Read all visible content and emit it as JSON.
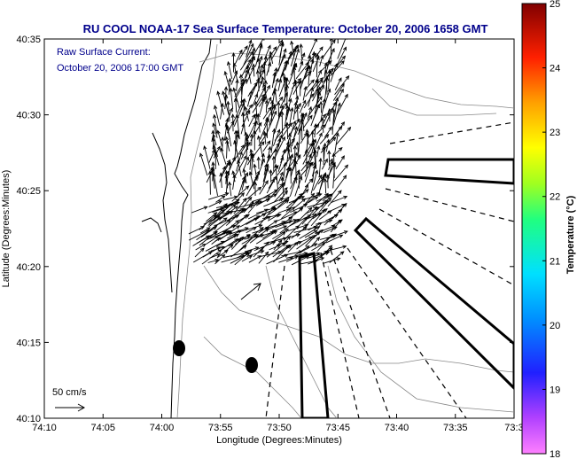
{
  "chart_data": {
    "type": "map",
    "title": "RU COOL  NOAA-17  Sea Surface Temperature:  October 20, 2006 1658 GMT",
    "annotation_line1": "Raw Surface Current:",
    "annotation_line2": "October 20, 2006 17:00 GMT",
    "xlabel": "Longitude (Degrees:Minutes)",
    "ylabel": "Latitude (Degrees:Minutes)",
    "x_tick_labels": [
      "74:10",
      "74:05",
      "74:00",
      "73:55",
      "73:50",
      "73:45",
      "73:40",
      "73:35",
      "73:3"
    ],
    "y_tick_labels": [
      "40:35",
      "40:30",
      "40:25",
      "40:20",
      "40:15",
      "40:10"
    ],
    "scale_label": "50 cm/s",
    "colorbar": {
      "label": "Temperature (°C)",
      "range": [
        18,
        25
      ],
      "tick_labels": [
        "25",
        "24",
        "23",
        "22",
        "21",
        "20",
        "19",
        "18"
      ]
    },
    "markers": [
      "filled ellipse",
      "filled ellipse"
    ],
    "line_styles": [
      "dashed radial lines",
      "thick outlined rectangles"
    ]
  }
}
